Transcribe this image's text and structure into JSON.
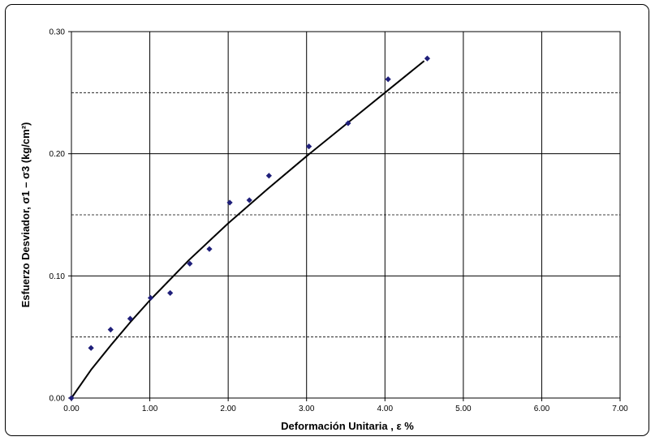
{
  "chart_data": {
    "type": "scatter",
    "title": "",
    "xlabel": "Deformación Unitaria , ε %",
    "ylabel": "Esfuerzo Desviador, σ1 – σ3 (kg/cm²)",
    "xlim": [
      0,
      7
    ],
    "ylim": [
      0,
      0.3
    ],
    "x_ticks": [
      0,
      1,
      2,
      3,
      4,
      5,
      6,
      7
    ],
    "x_tick_labels": [
      "0.00",
      "1.00",
      "2.00",
      "3.00",
      "4.00",
      "5.00",
      "6.00",
      "7.00"
    ],
    "y_ticks": [
      0,
      0.1,
      0.2,
      0.3
    ],
    "y_tick_labels": [
      "0.00",
      "0.10",
      "0.20",
      "0.30"
    ],
    "y_minor_dashed": [
      0.05,
      0.15,
      0.25
    ],
    "grid": true,
    "legend": "none",
    "colors": {
      "points": "#1f1f7a",
      "curve": "#000000",
      "grid": "#000000"
    },
    "series": [
      {
        "kind": "points",
        "x": [
          0,
          0.25,
          0.5,
          0.75,
          1.01,
          1.26,
          1.51,
          1.76,
          2.02,
          2.27,
          2.52,
          3.03,
          3.53,
          4.04,
          4.54
        ],
        "y": [
          0,
          0.041,
          0.056,
          0.065,
          0.082,
          0.086,
          0.11,
          0.122,
          0.16,
          0.162,
          0.182,
          0.206,
          0.225,
          0.261,
          0.278
        ]
      },
      {
        "kind": "trendline",
        "x": [
          0,
          0.25,
          0.5,
          0.75,
          1.0,
          1.5,
          2.0,
          2.5,
          3.0,
          3.5,
          4.0,
          4.5
        ],
        "y": [
          0,
          0.023,
          0.043,
          0.062,
          0.08,
          0.113,
          0.143,
          0.171,
          0.198,
          0.224,
          0.25,
          0.276
        ]
      }
    ]
  }
}
